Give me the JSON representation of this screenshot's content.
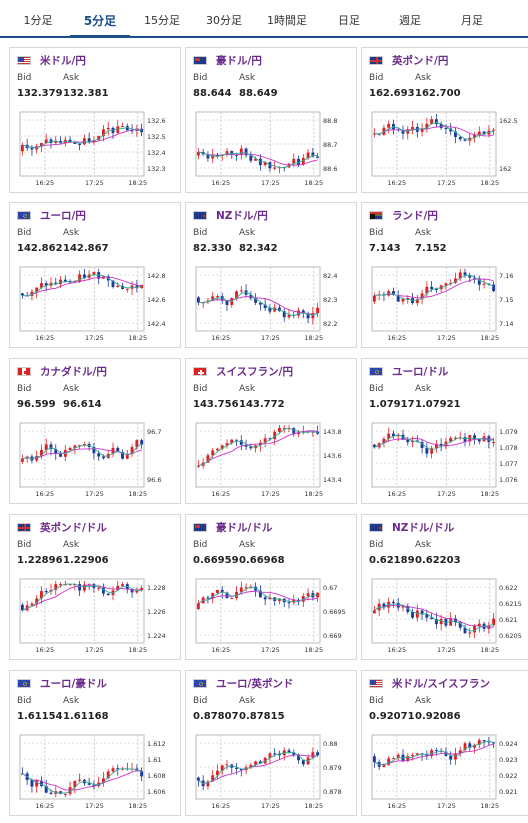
{
  "tabs": [
    {
      "label": "1分足",
      "active": false
    },
    {
      "label": "5分足",
      "active": true
    },
    {
      "label": "15分足",
      "active": false
    },
    {
      "label": "30分足",
      "active": false
    },
    {
      "label": "1時間足",
      "active": false
    },
    {
      "label": "日足",
      "active": false
    },
    {
      "label": "週足",
      "active": false
    },
    {
      "label": "月足",
      "active": false
    }
  ],
  "bid_label": "Bid",
  "ask_label": "Ask",
  "time_labels": [
    "16:25",
    "17:25",
    "18:25"
  ],
  "colors": {
    "title": "#6b2a8c",
    "up": "#e02020",
    "down": "#1a3a9a",
    "ma": "#cc33cc",
    "ma2": "#33aa99",
    "tab_active": "#1a4e8a"
  },
  "cards": [
    {
      "pair": "米ドル/円",
      "flag": "us-flag-icon",
      "bid": "132.379",
      "ask": "132.381",
      "ticks": [
        "132.6",
        "132.5",
        "132.4",
        "132.3"
      ]
    },
    {
      "pair": "豪ドル/円",
      "flag": "au-flag-icon",
      "bid": "88.644",
      "ask": "88.649",
      "ticks": [
        "88.8",
        "88.7",
        "88.6"
      ]
    },
    {
      "pair": "英ポンド/円",
      "flag": "uk-flag-icon",
      "bid": "162.693",
      "ask": "162.700",
      "ticks": [
        "162.5",
        "162"
      ]
    },
    {
      "pair": "ユーロ/円",
      "flag": "eu-flag-icon",
      "bid": "142.862",
      "ask": "142.867",
      "ticks": [
        "142.8",
        "142.6",
        "142.4"
      ]
    },
    {
      "pair": "NZドル/円",
      "flag": "nz-flag-icon",
      "bid": "82.330",
      "ask": "82.342",
      "ticks": [
        "82.4",
        "82.3",
        "82.2"
      ]
    },
    {
      "pair": "ランド/円",
      "flag": "za-flag-icon",
      "bid": "7.143",
      "ask": "7.152",
      "ticks": [
        "7.16",
        "7.15",
        "7.14"
      ]
    },
    {
      "pair": "カナダドル/円",
      "flag": "ca-flag-icon",
      "bid": "96.599",
      "ask": "96.614",
      "ticks": [
        "96.7",
        "96.6"
      ]
    },
    {
      "pair": "スイスフラン/円",
      "flag": "ch-flag-icon",
      "bid": "143.756",
      "ask": "143.772",
      "ticks": [
        "143.8",
        "143.6",
        "143.4"
      ]
    },
    {
      "pair": "ユーロ/ドル",
      "flag": "eu-us-flag-icon",
      "bid": "1.07917",
      "ask": "1.07921",
      "ticks": [
        "1.079",
        "1.078",
        "1.077",
        "1.076"
      ]
    },
    {
      "pair": "英ポンド/ドル",
      "flag": "uk-us-flag-icon",
      "bid": "1.22896",
      "ask": "1.22906",
      "ticks": [
        "1.228",
        "1.226",
        "1.224"
      ]
    },
    {
      "pair": "豪ドル/ドル",
      "flag": "au-us-flag-icon",
      "bid": "0.66959",
      "ask": "0.66968",
      "ticks": [
        "0.67",
        "0.6695",
        "0.669"
      ]
    },
    {
      "pair": "NZドル/ドル",
      "flag": "nz-us-flag-icon",
      "bid": "0.62189",
      "ask": "0.62203",
      "ticks": [
        "0.622",
        "0.6215",
        "0.621",
        "0.6205"
      ]
    },
    {
      "pair": "ユーロ/豪ドル",
      "flag": "eu-au-flag-icon",
      "bid": "1.61154",
      "ask": "1.61168",
      "ticks": [
        "1.612",
        "1.61",
        "1.608",
        "1.606"
      ]
    },
    {
      "pair": "ユーロ/英ポンド",
      "flag": "eu-uk-flag-icon",
      "bid": "0.87807",
      "ask": "0.87815",
      "ticks": [
        "0.88",
        "0.879",
        "0.878"
      ]
    },
    {
      "pair": "米ドル/スイスフラン",
      "flag": "us-ch-flag-icon",
      "bid": "0.92071",
      "ask": "0.92086",
      "ticks": [
        "0.924",
        "0.923",
        "0.922",
        "0.921"
      ]
    }
  ]
}
